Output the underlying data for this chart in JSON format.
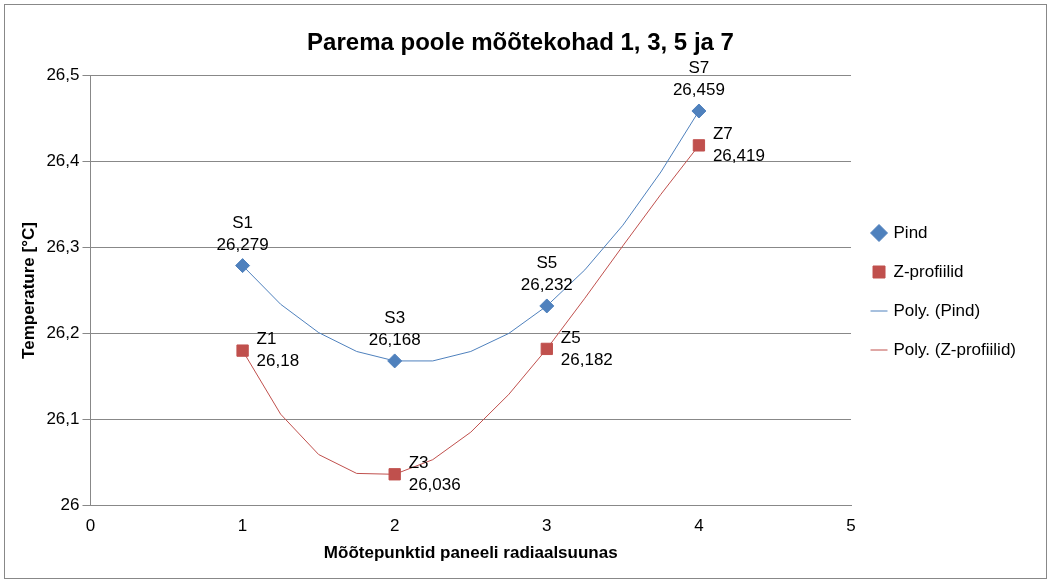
{
  "chart_data": {
    "type": "scatter",
    "title": "Parema poole mõõtekohad 1, 3, 5 ja 7",
    "xlabel": "Mõõtepunktid paneeli radiaalsuunas",
    "ylabel": "Temperature [°C]",
    "xlim": [
      0,
      5
    ],
    "xticks": [
      0,
      1,
      2,
      3,
      4,
      5
    ],
    "ylim": [
      26,
      26.5
    ],
    "yticks": [
      26,
      {
        "value": 26.1,
        "label": "26,1"
      },
      {
        "value": 26.2,
        "label": "26,2"
      },
      {
        "value": 26.3,
        "label": "26,3"
      },
      {
        "value": 26.4,
        "label": "26,4"
      },
      {
        "value": 26.5,
        "label": "26,5"
      }
    ],
    "grid": "y",
    "legend": "right",
    "series": [
      {
        "name": "Pind",
        "type": "scatter",
        "marker": "diamond",
        "color": "#4f81bd",
        "x": [
          1,
          2,
          3,
          4
        ],
        "values": [
          26.279,
          26.168,
          26.232,
          26.459
        ],
        "value_labels": [
          "S1\n26,279",
          "S3\n26,168",
          "S5\n26,232",
          "S7\n26,459"
        ]
      },
      {
        "name": "Z-profiilid",
        "type": "scatter",
        "marker": "square",
        "color": "#c0504d",
        "x": [
          1,
          2,
          3,
          4
        ],
        "values": [
          26.18,
          26.036,
          26.182,
          26.419
        ],
        "value_labels": [
          "Z1\n26,18",
          "Z3\n26,036",
          "Z5\n26,182",
          "Z7\n26,419"
        ]
      },
      {
        "name": "Poly. (Pind)",
        "type": "line",
        "marker": "none",
        "color": "#4f81bd",
        "x": [
          1,
          1.25,
          1.5,
          1.75,
          2,
          2.25,
          2.5,
          2.75,
          3,
          3.25,
          3.5,
          3.75,
          4
        ],
        "values": [
          26.279,
          26.234,
          26.201,
          26.179,
          26.168,
          26.168,
          26.179,
          26.2,
          26.232,
          26.274,
          26.326,
          26.388,
          26.459
        ]
      },
      {
        "name": "Poly. (Z-profiilid)",
        "type": "line",
        "marker": "none",
        "color": "#c0504d",
        "x": [
          1,
          1.25,
          1.5,
          1.75,
          2,
          2.25,
          2.5,
          2.75,
          3,
          3.25,
          3.5,
          3.75,
          4
        ],
        "values": [
          26.18,
          26.106,
          26.059,
          26.037,
          26.036,
          26.053,
          26.085,
          26.129,
          26.182,
          26.241,
          26.302,
          26.362,
          26.419
        ]
      }
    ]
  }
}
